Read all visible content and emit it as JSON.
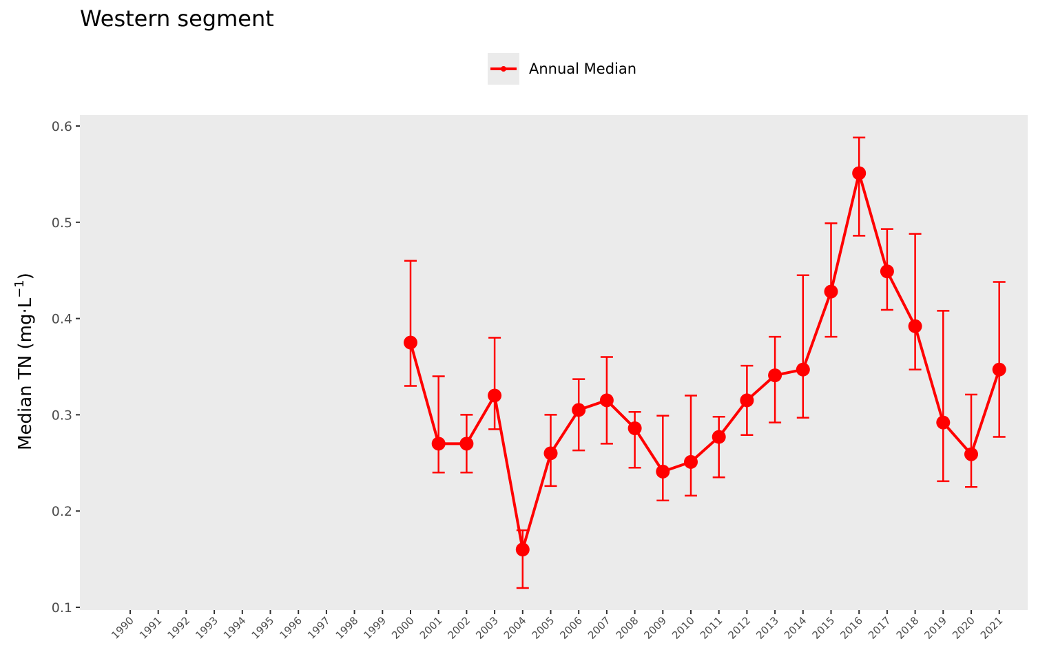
{
  "chart_data": {
    "type": "line",
    "title": "Western segment",
    "ylabel": "Median TN (mg·L",
    "ylabel_exponent": "−1",
    "ylabel_suffix": ")",
    "xlabel": "",
    "ylim": [
      0.1,
      0.6
    ],
    "yticks": [
      "0.1",
      "0.2",
      "0.3",
      "0.4",
      "0.5",
      "0.6"
    ],
    "categories": [
      "1990",
      "1991",
      "1992",
      "1993",
      "1994",
      "1995",
      "1996",
      "1997",
      "1998",
      "1999",
      "2000",
      "2001",
      "2002",
      "2003",
      "2004",
      "2005",
      "2006",
      "2007",
      "2008",
      "2009",
      "2010",
      "2011",
      "2012",
      "2013",
      "2014",
      "2015",
      "2016",
      "2017",
      "2018",
      "2019",
      "2020",
      "2021"
    ],
    "series": [
      {
        "name": "Annual Median",
        "color": "#ff0000",
        "points": [
          {
            "x": "2000",
            "y": 0.375,
            "lo": 0.33,
            "hi": 0.46
          },
          {
            "x": "2001",
            "y": 0.27,
            "lo": 0.24,
            "hi": 0.34
          },
          {
            "x": "2002",
            "y": 0.27,
            "lo": 0.24,
            "hi": 0.3
          },
          {
            "x": "2003",
            "y": 0.32,
            "lo": 0.285,
            "hi": 0.38
          },
          {
            "x": "2004",
            "y": 0.16,
            "lo": 0.12,
            "hi": 0.18
          },
          {
            "x": "2005",
            "y": 0.26,
            "lo": 0.226,
            "hi": 0.3
          },
          {
            "x": "2006",
            "y": 0.305,
            "lo": 0.263,
            "hi": 0.337
          },
          {
            "x": "2007",
            "y": 0.315,
            "lo": 0.27,
            "hi": 0.36
          },
          {
            "x": "2008",
            "y": 0.286,
            "lo": 0.245,
            "hi": 0.303
          },
          {
            "x": "2009",
            "y": 0.241,
            "lo": 0.211,
            "hi": 0.299
          },
          {
            "x": "2010",
            "y": 0.251,
            "lo": 0.216,
            "hi": 0.32
          },
          {
            "x": "2011",
            "y": 0.277,
            "lo": 0.235,
            "hi": 0.298
          },
          {
            "x": "2012",
            "y": 0.315,
            "lo": 0.279,
            "hi": 0.351
          },
          {
            "x": "2013",
            "y": 0.341,
            "lo": 0.292,
            "hi": 0.381
          },
          {
            "x": "2014",
            "y": 0.347,
            "lo": 0.297,
            "hi": 0.445
          },
          {
            "x": "2015",
            "y": 0.428,
            "lo": 0.381,
            "hi": 0.499
          },
          {
            "x": "2016",
            "y": 0.551,
            "lo": 0.486,
            "hi": 0.588
          },
          {
            "x": "2017",
            "y": 0.449,
            "lo": 0.409,
            "hi": 0.493
          },
          {
            "x": "2018",
            "y": 0.392,
            "lo": 0.347,
            "hi": 0.488
          },
          {
            "x": "2019",
            "y": 0.292,
            "lo": 0.231,
            "hi": 0.408
          },
          {
            "x": "2020",
            "y": 0.259,
            "lo": 0.225,
            "hi": 0.321
          },
          {
            "x": "2021",
            "y": 0.347,
            "lo": 0.277,
            "hi": 0.438
          }
        ]
      }
    ],
    "legend": "top-center",
    "panel_background": "#ebebeb",
    "grid": false
  }
}
